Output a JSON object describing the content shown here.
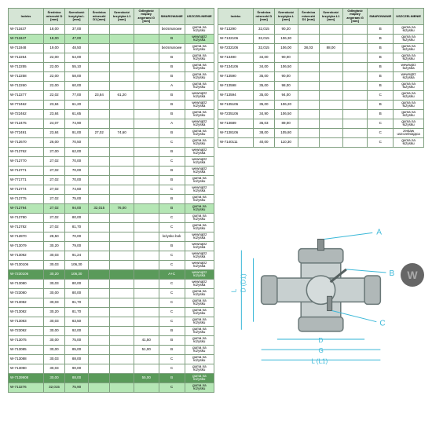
{
  "columns": [
    "Indeks",
    "Średnica miseczki D [mm]",
    "Szerokość krzyżyka L [mm]",
    "Średnica miseczki D1 [mm]",
    "Szerokość krzyżyka L1 [mm]",
    "Odległość między zegerami G [mm]",
    "SMAROWANIE",
    "USZCZELNIENIE"
  ],
  "leftRows": [
    [
      "W-711637",
      "18,00",
      "37,00",
      "",
      "",
      "",
      "bezsmarowe",
      "guma na łożysku",
      ""
    ],
    [
      "W-711847",
      "18,00",
      "47,00",
      "",
      "",
      "",
      "B",
      "wewnątrz łożyska",
      "green"
    ],
    [
      "W-711948",
      "19,00",
      "48,50",
      "",
      "",
      "",
      "bezsmarowe",
      "guma na łożysku",
      ""
    ],
    [
      "W-712254",
      "22,00",
      "54,00",
      "",
      "",
      "",
      "B",
      "guma na łożysku",
      ""
    ],
    [
      "W-712255",
      "22,00",
      "55,10",
      "",
      "",
      "",
      "B",
      "guma na łożysku",
      ""
    ],
    [
      "W-712258",
      "22,00",
      "58,00",
      "",
      "",
      "",
      "B",
      "guma na łożysku",
      ""
    ],
    [
      "W-712260",
      "22,00",
      "60,00",
      "",
      "",
      "",
      "A",
      "guma na łożysku",
      ""
    ],
    [
      "W-712277",
      "22,02",
      "77,00",
      "23,84",
      "61,20",
      "",
      "B",
      "wewnątrz łożyska",
      ""
    ],
    [
      "W-772462",
      "23,84",
      "61,20",
      "",
      "",
      "",
      "B",
      "wewnątrz łożyska",
      ""
    ],
    [
      "W-722462",
      "23,84",
      "61,65",
      "",
      "",
      "",
      "B",
      "guma na łożysku",
      ""
    ],
    [
      "W-712475",
      "24,07",
      "74,90",
      "",
      "",
      "",
      "A",
      "wewnątrz łożyska",
      ""
    ],
    [
      "W-772491",
      "23,84",
      "91,00",
      "27,02",
      "74,60",
      "",
      "B",
      "guma na łożysku",
      ""
    ],
    [
      "W-712670",
      "26,00",
      "70,50",
      "",
      "",
      "",
      "C",
      "guma na łożysku",
      ""
    ],
    [
      "W-712762",
      "27,00",
      "62,00",
      "",
      "",
      "",
      "B",
      "wewnątrz łożyska",
      ""
    ],
    [
      "W-712770",
      "27,02",
      "70,00",
      "",
      "",
      "",
      "C",
      "wewnątrz łożyska",
      ""
    ],
    [
      "W-712771",
      "27,02",
      "70,00",
      "",
      "",
      "",
      "B",
      "wewnątrz łożyska",
      ""
    ],
    [
      "W-771771",
      "27,02",
      "70,00",
      "",
      "",
      "",
      "B",
      "guma na łożysku",
      ""
    ],
    [
      "W-712774",
      "27,02",
      "74,60",
      "",
      "",
      "",
      "C",
      "wewnątrz łożyska",
      ""
    ],
    [
      "W-712775",
      "27,02",
      "75,00",
      "",
      "",
      "",
      "B",
      "guma na łożysku",
      ""
    ],
    [
      "W-712794",
      "27,02",
      "94,00",
      "32,015",
      "76,00",
      "",
      "B",
      "guma na łożysku",
      "green"
    ],
    [
      "W-712780",
      "27,02",
      "80,00",
      "",
      "",
      "",
      "C",
      "guma na łożysku",
      ""
    ],
    [
      "W-712782",
      "27,02",
      "81,70",
      "",
      "",
      "",
      "C",
      "guma na łożysku",
      ""
    ],
    [
      "W-712870",
      "28,50",
      "70,00",
      "",
      "",
      "",
      "łożysko bok",
      "wewnątrz łożyska",
      ""
    ],
    [
      "W-713079",
      "30,20",
      "79,00",
      "",
      "",
      "",
      "B",
      "wewnątrz łożyska",
      ""
    ],
    [
      "W-713092",
      "30,03",
      "91,24",
      "",
      "",
      "",
      "C",
      "wewnątrz łożyska",
      ""
    ],
    [
      "W-7130106",
      "30,03",
      "106,30",
      "",
      "",
      "",
      "C",
      "wewnątrz łożyska",
      ""
    ],
    [
      "W-7230106",
      "30,20",
      "106,30",
      "",
      "",
      "",
      "A+C",
      "wewnątrz łożyska",
      "dark"
    ],
    [
      "W-713080",
      "30,03",
      "80,00",
      "",
      "",
      "",
      "C",
      "wewnątrz łożyska",
      ""
    ],
    [
      "W-723080",
      "30,00",
      "80,00",
      "",
      "",
      "",
      "C",
      "guma na łożysku",
      ""
    ],
    [
      "W-713082",
      "30,03",
      "81,70",
      "",
      "",
      "",
      "C",
      "guma na łożysku",
      ""
    ],
    [
      "W-713082",
      "30,20",
      "81,70",
      "",
      "",
      "",
      "C",
      "guma na łożysku",
      ""
    ],
    [
      "W-713083",
      "30,03",
      "83,50",
      "",
      "",
      "",
      "C",
      "guma na łożysku",
      ""
    ],
    [
      "W-723092",
      "30,00",
      "92,00",
      "",
      "",
      "",
      "B",
      "guma na łożysku",
      ""
    ],
    [
      "W-713075",
      "30,00",
      "75,00",
      "",
      "",
      "41,50",
      "B",
      "guma na łożysku",
      ""
    ],
    [
      "W-713085",
      "30,00",
      "85,00",
      "",
      "",
      "51,00",
      "B",
      "guma na łożysku",
      ""
    ],
    [
      "W-713088",
      "30,03",
      "88,00",
      "",
      "",
      "",
      "C",
      "guma na łożysku",
      ""
    ],
    [
      "W-713090",
      "30,03",
      "90,00",
      "",
      "",
      "",
      "C",
      "guma na łożysku",
      ""
    ],
    [
      "W-7139908",
      "30,00",
      "88,00",
      "",
      "",
      "55,00",
      "B",
      "guma na łożysku",
      "dark"
    ],
    [
      "W-713276",
      "32,015",
      "75,90",
      "",
      "",
      "",
      "C",
      "guma na łożysku",
      "green"
    ]
  ],
  "rightRows": [
    [
      "W-713290",
      "32,015",
      "90,20",
      "",
      "",
      "",
      "B",
      "guma na łożysku",
      ""
    ],
    [
      "W-7132106",
      "32,015",
      "106,30",
      "",
      "",
      "",
      "B",
      "guma na łożysku",
      ""
    ],
    [
      "W-7232106",
      "32,015",
      "106,00",
      "38,03",
      "88,00",
      "",
      "B",
      "guma na łożysku",
      ""
    ],
    [
      "W-713490",
      "34,00",
      "90,00",
      "",
      "",
      "",
      "B",
      "guma na łożysku",
      ""
    ],
    [
      "W-7134106",
      "34,00",
      "106,50",
      "",
      "",
      "",
      "B",
      "wewnątrz łożyska",
      ""
    ],
    [
      "W-713590",
      "35,00",
      "90,00",
      "",
      "",
      "",
      "B",
      "wewnątrz łożyska",
      ""
    ],
    [
      "W-713598",
      "35,00",
      "98,00",
      "",
      "",
      "",
      "B",
      "guma na łożysku",
      ""
    ],
    [
      "W-713594",
      "35,00",
      "94,00",
      "",
      "",
      "",
      "C",
      "guma na łożysku",
      ""
    ],
    [
      "W-7135106",
      "35,00",
      "106,20",
      "",
      "",
      "",
      "B",
      "guma na łożysku",
      ""
    ],
    [
      "W-7235106",
      "34,90",
      "106,50",
      "",
      "",
      "",
      "B",
      "guma na łożysku",
      ""
    ],
    [
      "W-713689",
      "36,03",
      "89,00",
      "",
      "",
      "",
      "C",
      "guma na łożysku",
      ""
    ],
    [
      "W-7138106",
      "38,00",
      "105,80",
      "",
      "",
      "",
      "C",
      "zestaw uszczelniająca",
      ""
    ],
    [
      "W-7140111",
      "40,00",
      "110,30",
      "",
      "",
      "",
      "C",
      "guma na łożysku",
      ""
    ]
  ],
  "diagram": {
    "labels": [
      "A",
      "B",
      "C",
      "D",
      "G",
      "L (L1)",
      "D (D1)",
      "L"
    ]
  }
}
